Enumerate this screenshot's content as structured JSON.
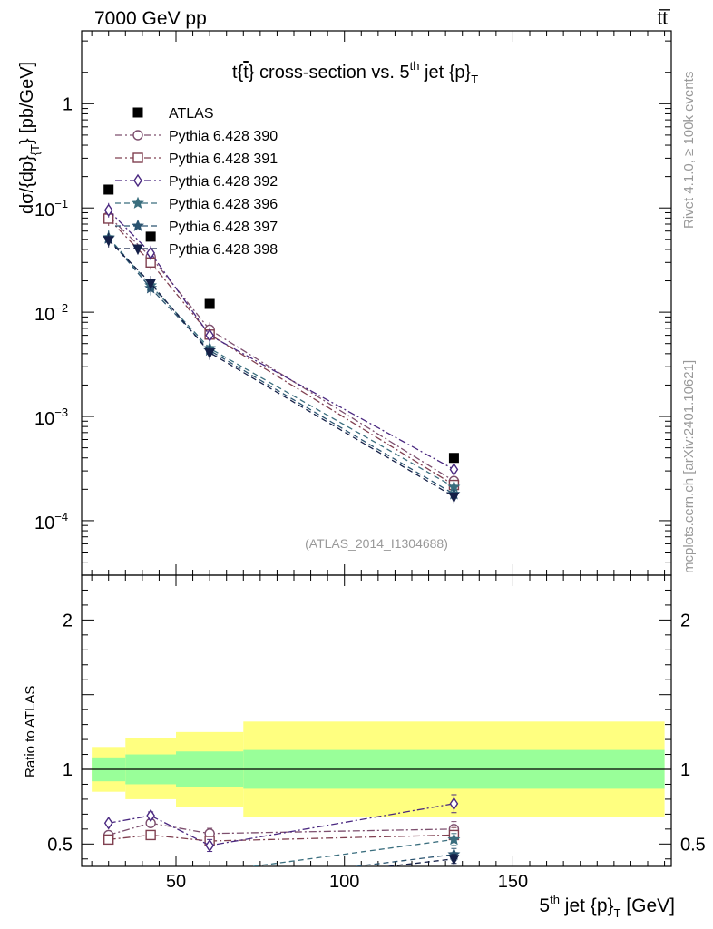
{
  "header": {
    "left": "7000 GeV pp",
    "right": "tt̅"
  },
  "side_text": {
    "rivet": "Rivet 4.1.0, ≥ 100k events",
    "mcplots": "mcplots.cern.ch [arXiv:2401.10621]"
  },
  "colors": {
    "data": "#000000",
    "band_inner": "#99ff99",
    "band_outer": "#ffff80",
    "series": [
      "#7d4f6e",
      "#804050",
      "#4a2880",
      "#3a6e7e",
      "#2b5470",
      "#152048"
    ]
  },
  "chart_data": [
    {
      "type": "line",
      "title": "t{t̅} cross-section vs. 5th jet {p}T",
      "title_parts": {
        "a": "t{",
        "b": "t",
        "c": "} cross-section vs. 5",
        "sup": "th",
        "d": " jet {p}",
        "sub": "T"
      },
      "ylabel": "dσ/{dp}_{T} [pb/GeV]",
      "ylabel_parts": {
        "a": "dσ/{dp}",
        "sub": "{T",
        "b": "} [pb/GeV]"
      },
      "yscale": "log",
      "xlim": [
        22,
        197
      ],
      "ylim": [
        3e-05,
        5
      ],
      "y_ticks": [
        {
          "value": 1,
          "label": "1"
        },
        {
          "value": 0.1,
          "base": "10",
          "exp": "−1"
        },
        {
          "value": 0.01,
          "base": "10",
          "exp": "−2"
        },
        {
          "value": 0.001,
          "base": "10",
          "exp": "−3"
        },
        {
          "value": 0.0001,
          "base": "10",
          "exp": "−4"
        }
      ],
      "watermark": "(ATLAS_2014_I1304688)",
      "legend_position": "top-left",
      "x_centers": [
        30,
        42.5,
        60,
        132.5
      ],
      "data": {
        "name": "ATLAS",
        "x": [
          30,
          42.5,
          60,
          132.5
        ],
        "y": [
          0.15,
          0.053,
          0.012,
          0.0004
        ]
      },
      "series": [
        {
          "name": "Pythia 6.428 390",
          "marker": "circle",
          "dash": "8,3,2,3",
          "values": [
            0.083,
            0.034,
            0.0068,
            0.00024
          ]
        },
        {
          "name": "Pythia 6.428 391",
          "marker": "square",
          "dash": "8,3,2,3",
          "values": [
            0.079,
            0.03,
            0.0061,
            0.00022
          ]
        },
        {
          "name": "Pythia 6.428 392",
          "marker": "diamond",
          "dash": "8,3,2,3",
          "values": [
            0.095,
            0.037,
            0.006,
            0.00031
          ]
        },
        {
          "name": "Pythia 6.428 396",
          "marker": "star-open",
          "dash": "6,4",
          "values": [
            0.052,
            0.018,
            0.0045,
            0.00021
          ]
        },
        {
          "name": "Pythia 6.428 397",
          "marker": "star",
          "dash": "6,4",
          "values": [
            0.051,
            0.017,
            0.0043,
            0.00018
          ]
        },
        {
          "name": "Pythia 6.428 398",
          "marker": "triangle-down",
          "dash": "6,4",
          "values": [
            0.049,
            0.019,
            0.0041,
            0.00017
          ]
        }
      ]
    },
    {
      "type": "line",
      "ylabel": "Ratio to ATLAS",
      "xlabel": "5th jet {p}T [GeV]",
      "xlabel_parts": {
        "a": "5",
        "sup": "th",
        "b": " jet {p}",
        "sub": "T",
        "c": " [GeV]"
      },
      "xlim": [
        22,
        197
      ],
      "ylim": [
        0.35,
        2.3
      ],
      "x_ticks": [
        50,
        100,
        150
      ],
      "y_ticks": [
        {
          "value": 0.5,
          "label": "0.5"
        },
        {
          "value": 1,
          "label": "1"
        },
        {
          "value": 2,
          "label": "2"
        }
      ],
      "bands": [
        {
          "x_low": 25,
          "x_high": 35,
          "inner": [
            0.92,
            1.08
          ],
          "outer": [
            0.85,
            1.15
          ]
        },
        {
          "x_low": 35,
          "x_high": 50,
          "inner": [
            0.9,
            1.1
          ],
          "outer": [
            0.8,
            1.21
          ]
        },
        {
          "x_low": 50,
          "x_high": 70,
          "inner": [
            0.88,
            1.12
          ],
          "outer": [
            0.75,
            1.25
          ]
        },
        {
          "x_low": 70,
          "x_high": 195,
          "inner": [
            0.87,
            1.13
          ],
          "outer": [
            0.68,
            1.32
          ]
        }
      ],
      "series": [
        {
          "name": "Pythia 6.428 390",
          "x": [
            30,
            42.5,
            60,
            132.5
          ],
          "values": [
            0.56,
            0.64,
            0.57,
            0.6
          ],
          "errors": [
            0.015,
            0.02,
            0.035,
            0.05
          ]
        },
        {
          "name": "Pythia 6.428 391",
          "x": [
            30,
            42.5,
            60,
            132.5
          ],
          "values": [
            0.53,
            0.56,
            0.52,
            0.56
          ],
          "errors": [
            0.015,
            0.02,
            0.03,
            0.05
          ]
        },
        {
          "name": "Pythia 6.428 392",
          "x": [
            30,
            42.5,
            60,
            132.5
          ],
          "values": [
            0.64,
            0.69,
            0.49,
            0.77
          ],
          "errors": [
            0.015,
            0.025,
            0.04,
            0.06
          ]
        },
        {
          "name": "Pythia 6.428 396",
          "x": [
            72.9,
            132.5
          ],
          "values": [
            0.35,
            0.53
          ],
          "errors": [
            0,
            0.04
          ]
        },
        {
          "name": "Pythia 6.428 397",
          "x": [
            103.5,
            132.5
          ],
          "values": [
            0.35,
            0.43
          ],
          "errors": [
            0,
            0.04
          ]
        },
        {
          "name": "Pythia 6.428 398",
          "x": [
            113.0,
            132.5
          ],
          "values": [
            0.35,
            0.4
          ],
          "errors": [
            0,
            0.03
          ]
        }
      ]
    }
  ]
}
